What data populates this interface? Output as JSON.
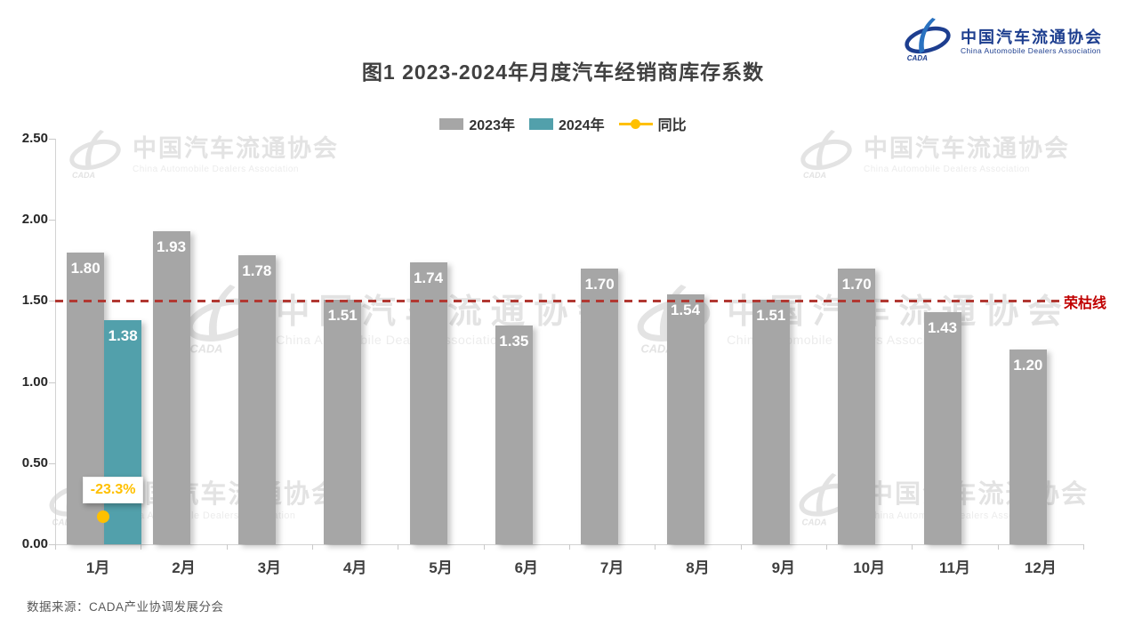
{
  "logo": {
    "org_zh": "中国汽车流通协会",
    "org_en": "China Automobile Dealers Association"
  },
  "title": "图1  2023-2024年月度汽车经销商库存系数",
  "legend": {
    "items": [
      {
        "label": "2023年"
      },
      {
        "label": "2024年"
      },
      {
        "label": "同比"
      }
    ]
  },
  "chart_data": {
    "type": "bar",
    "title": "图1 2023-2024年月度汽车经销商库存系数",
    "categories": [
      "1月",
      "2月",
      "3月",
      "4月",
      "5月",
      "6月",
      "7月",
      "8月",
      "9月",
      "10月",
      "11月",
      "12月"
    ],
    "series": [
      {
        "name": "2023年",
        "color": "#a6a6a6",
        "values": [
          1.8,
          1.93,
          1.78,
          1.51,
          1.74,
          1.35,
          1.7,
          1.54,
          1.51,
          1.7,
          1.43,
          1.2
        ]
      },
      {
        "name": "2024年",
        "color": "#52a0ab",
        "values": [
          1.38,
          null,
          null,
          null,
          null,
          null,
          null,
          null,
          null,
          null,
          null,
          null
        ]
      }
    ],
    "yoy": {
      "name": "同比",
      "color": "#ffc000",
      "month": "1月",
      "value": -23.3,
      "value_label": "-23.3%"
    },
    "reference_line": {
      "value": 1.5,
      "label": "荣枯线",
      "color": "#c00000",
      "line_color": "#b13832"
    },
    "y_axis": {
      "min": 0,
      "max": 2.5,
      "ticks": [
        "0.00",
        "0.50",
        "1.00",
        "1.50",
        "2.00",
        "2.50"
      ]
    },
    "legend_position": "top",
    "grid": false
  },
  "watermark": {
    "zh": "中国汽车流通协会",
    "en": "China Automobile Dealers Association"
  },
  "footer": {
    "source": "数据来源：CADA产业协调发展分会"
  },
  "colors": {
    "bar_2023": "#a6a6a6",
    "bar_2024": "#52a0ab",
    "yoy": "#ffc000",
    "reference": "#c00000",
    "title": "#404040",
    "logo_navy": "#1d3e8f",
    "logo_blue": "#2a72c0",
    "watermark_gray": "#e3e3e3"
  }
}
